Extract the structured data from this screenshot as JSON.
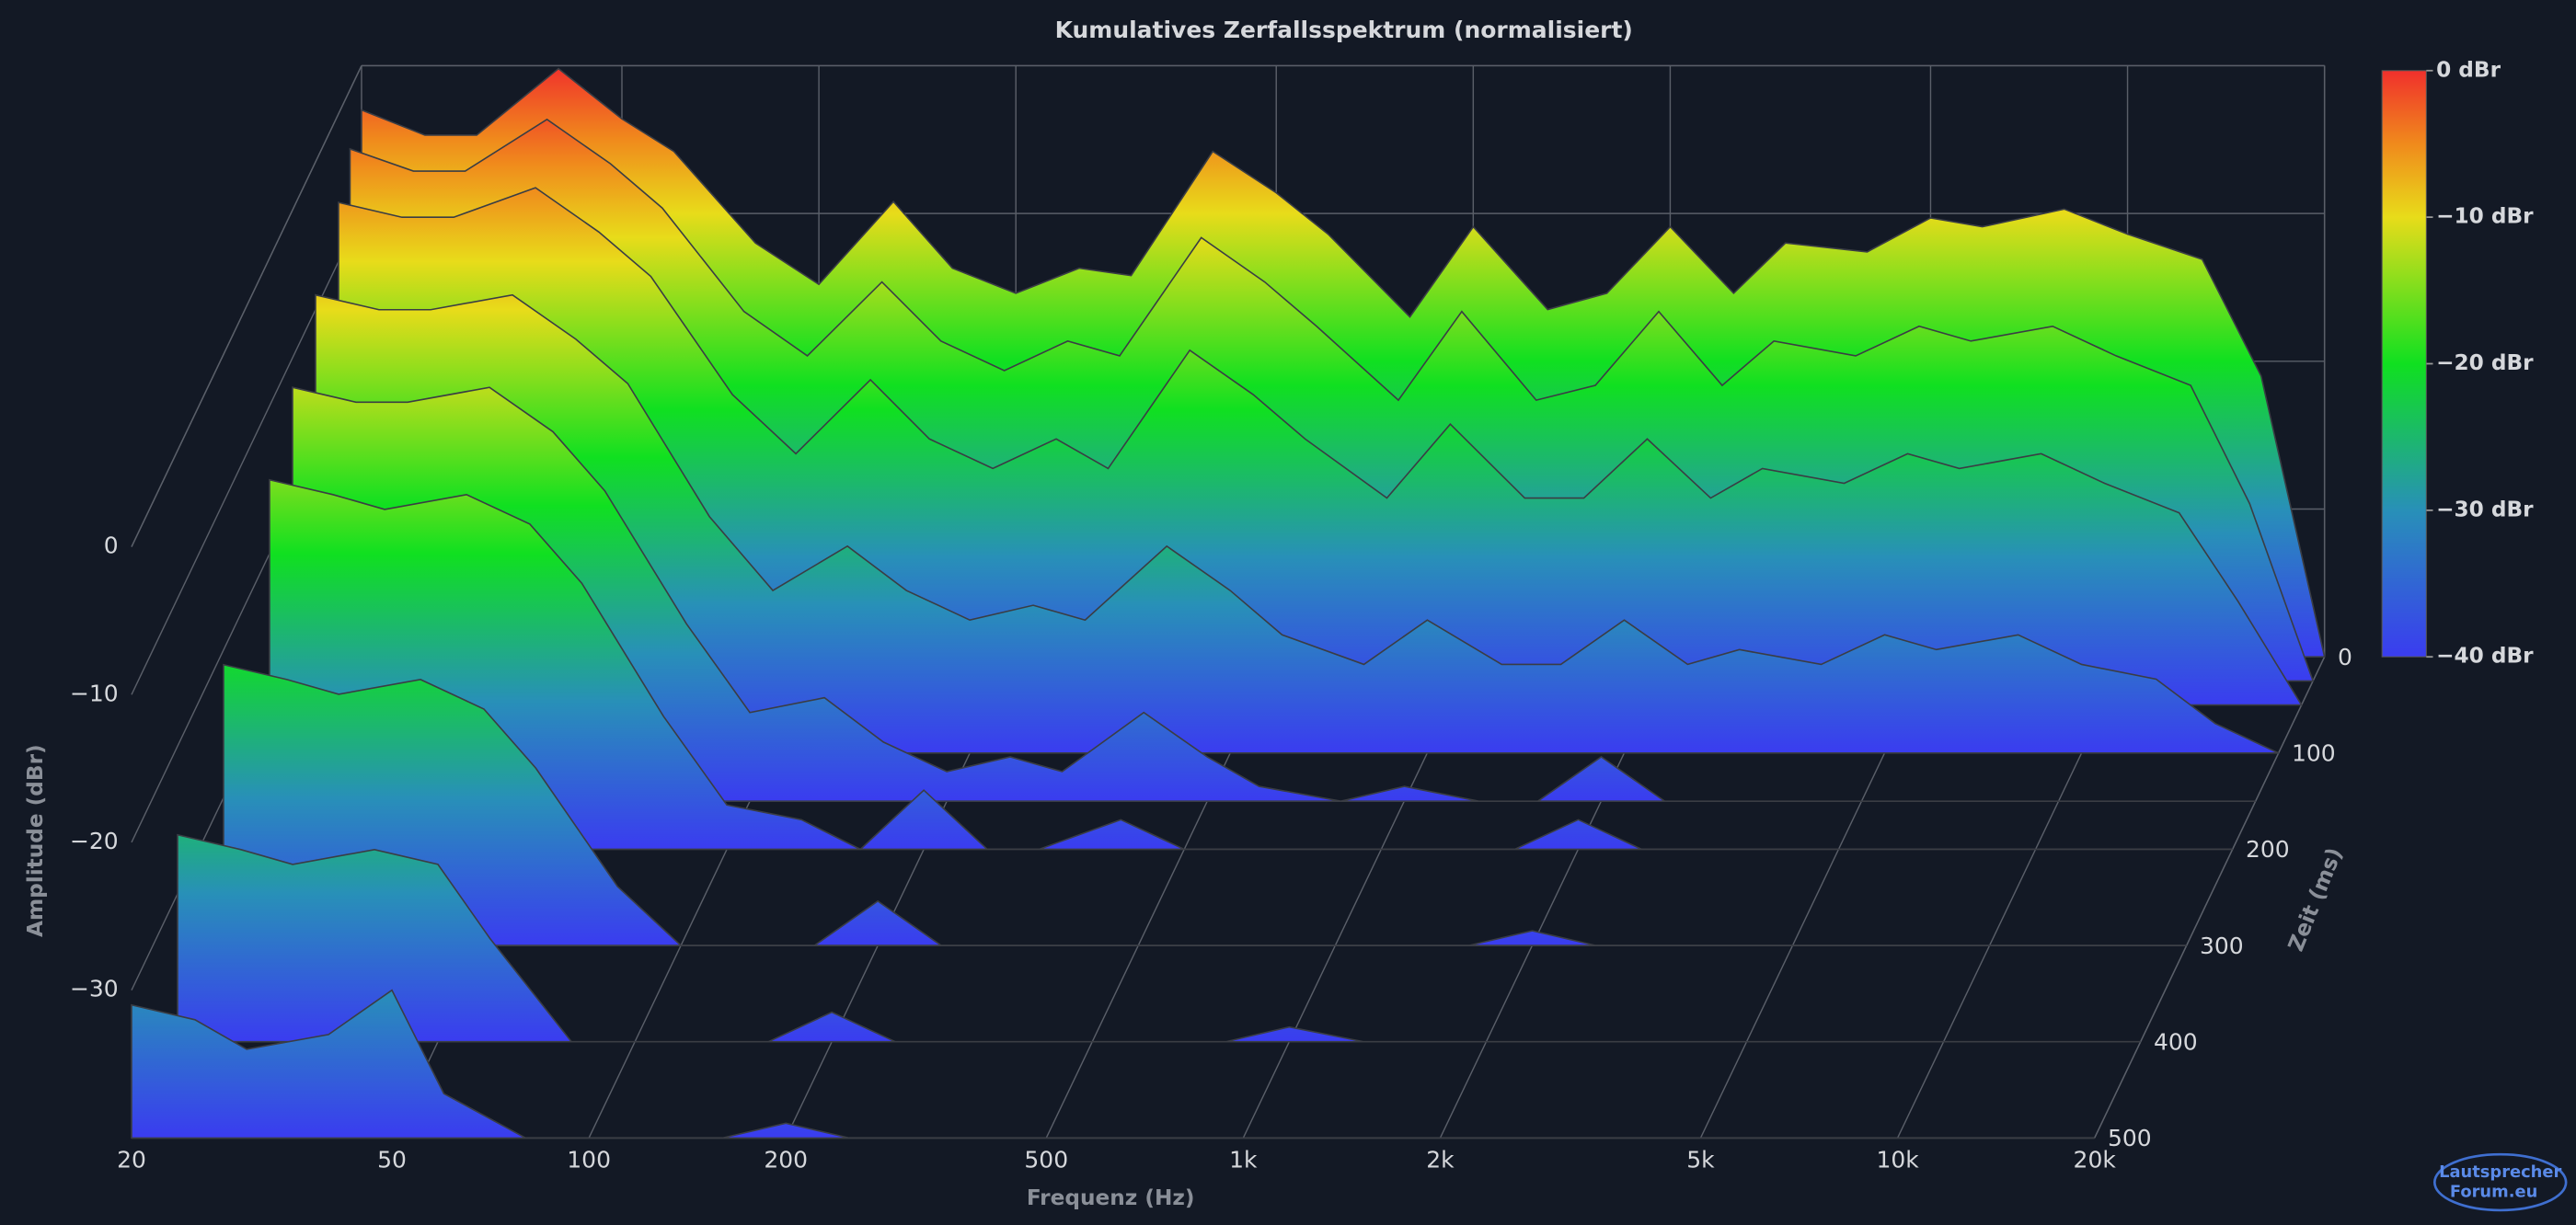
{
  "chart_data": {
    "type": "waterfall",
    "title": "Kumulatives Zerfallsspektrum (normalisiert)",
    "x_label": "Frequenz (Hz)",
    "y_label": "Amplitude (dBr)",
    "z_label": "Zeit (ms)",
    "x_scale": "log",
    "xlim": [
      20,
      20000
    ],
    "xticks": [
      20,
      50,
      100,
      200,
      500,
      {
        "value": 1000,
        "label": "1k"
      },
      {
        "value": 2000,
        "label": "2k"
      },
      {
        "value": 5000,
        "label": "5k"
      },
      {
        "value": 10000,
        "label": "10k"
      },
      {
        "value": 20000,
        "label": "20k"
      }
    ],
    "ylim": [
      -40,
      0
    ],
    "yticks": [
      {
        "value": 0,
        "label": "0"
      },
      {
        "value": -10,
        "label": "−10"
      },
      {
        "value": -20,
        "label": "−20"
      },
      {
        "value": -30,
        "label": "−30"
      }
    ],
    "zlim": [
      0,
      500
    ],
    "zticks": [
      0,
      100,
      200,
      300,
      400,
      500
    ],
    "x": [
      20,
      25,
      30,
      40,
      50,
      60,
      80,
      100,
      130,
      160,
      200,
      250,
      300,
      400,
      500,
      600,
      800,
      1000,
      1300,
      1600,
      2000,
      2500,
      3000,
      4000,
      5000,
      6000,
      8000,
      10000,
      13000,
      16000,
      20000
    ],
    "slices": [
      {
        "time": 0,
        "values": [
          -3,
          -4.7,
          -4.7,
          -0.2,
          -3.6,
          -5.8,
          -12,
          -14.8,
          -9.2,
          -13.7,
          -15.4,
          -13.7,
          -14.2,
          -5.8,
          -8.6,
          -11.4,
          -17,
          -10.9,
          -16.5,
          -15.4,
          -10.9,
          -15.4,
          -12,
          -12.6,
          -10.3,
          -10.9,
          -9.7,
          -11.4,
          -13.1,
          -21,
          -40
        ]
      },
      {
        "time": 25,
        "values": [
          -4,
          -5.5,
          -5.5,
          -2,
          -5,
          -8,
          -15,
          -18,
          -13,
          -17,
          -19,
          -17,
          -18,
          -10,
          -13,
          -16,
          -21,
          -15,
          -21,
          -20,
          -15,
          -20,
          -17,
          -18,
          -16,
          -17,
          -16,
          -18,
          -20,
          -28,
          -40
        ]
      },
      {
        "time": 50,
        "values": [
          -6,
          -7,
          -7,
          -5,
          -8,
          -11,
          -19,
          -23,
          -18,
          -22,
          -24,
          -22,
          -24,
          -16,
          -19,
          -22,
          -26,
          -21,
          -26,
          -26,
          -22,
          -26,
          -24,
          -25,
          -23,
          -24,
          -23,
          -25,
          -27,
          -33,
          -40
        ]
      },
      {
        "time": 100,
        "values": [
          -9,
          -10,
          -10,
          -9,
          -12,
          -15,
          -24,
          -29,
          -26,
          -29,
          -31,
          -30,
          -31,
          -26,
          -29,
          -32,
          -34,
          -31,
          -34,
          -34,
          -31,
          -34,
          -33,
          -34,
          -32,
          -33,
          -32,
          -34,
          -35,
          -38,
          -40
        ]
      },
      {
        "time": 150,
        "values": [
          -12,
          -13,
          -13,
          -12,
          -15,
          -19,
          -28,
          -34,
          -33,
          -36,
          -38,
          -37,
          -38,
          -34,
          -37,
          -39,
          -40,
          -39,
          -40,
          -40,
          -37,
          -40,
          -40,
          -40,
          -40,
          -40,
          -40,
          -40,
          -40,
          -40,
          -40
        ]
      },
      {
        "time": 200,
        "values": [
          -15,
          -16,
          -17,
          -16,
          -18,
          -22,
          -31,
          -37,
          -38,
          -40,
          -36,
          -40,
          -40,
          -38,
          -40,
          -40,
          -40,
          -40,
          -40,
          -40,
          -38,
          -40,
          -40,
          -40,
          -40,
          -40,
          -40,
          -40,
          -40,
          -40,
          -40
        ]
      },
      {
        "time": 300,
        "values": [
          -21,
          -22,
          -23,
          -22,
          -24,
          -28,
          -36,
          -40,
          -40,
          -40,
          -37,
          -40,
          -40,
          -40,
          -40,
          -40,
          -40,
          -40,
          -40,
          -40,
          -39,
          -40,
          -40,
          -40,
          -40,
          -40,
          -40,
          -40,
          -40,
          -40,
          -40
        ]
      },
      {
        "time": 400,
        "values": [
          -26,
          -27,
          -28,
          -27,
          -28,
          -33,
          -40,
          -40,
          -40,
          -40,
          -38,
          -40,
          -40,
          -40,
          -40,
          -40,
          -40,
          -39,
          -40,
          -40,
          -40,
          -40,
          -40,
          -40,
          -40,
          -40,
          -40,
          -40,
          -40,
          -40,
          -40
        ]
      },
      {
        "time": 500,
        "values": [
          -31,
          -32,
          -34,
          -33,
          -30,
          -37,
          -40,
          -40,
          -40,
          -40,
          -39,
          -40,
          -40,
          -40,
          -40,
          -40,
          -40,
          -40,
          -40,
          -40,
          -40,
          -40,
          -40,
          -40,
          -40,
          -40,
          -40,
          -40,
          -40,
          -40,
          -40
        ]
      }
    ],
    "colormap": [
      {
        "value": 0,
        "color": "#f0302c"
      },
      {
        "value": -5,
        "color": "#f08a1c"
      },
      {
        "value": -10,
        "color": "#e8dc1a"
      },
      {
        "value": -20,
        "color": "#10e020"
      },
      {
        "value": -30,
        "color": "#2890b8"
      },
      {
        "value": -40,
        "color": "#3a3cf0"
      }
    ],
    "colorbar_lim": [
      -40,
      0
    ],
    "colorbar_ticks": [
      {
        "value": 0,
        "label": "0 dBr"
      },
      {
        "value": -10,
        "label": "−10 dBr"
      },
      {
        "value": -20,
        "label": "−20 dBr"
      },
      {
        "value": -30,
        "label": "−30 dBr"
      },
      {
        "value": -40,
        "label": "−40 dBr"
      }
    ],
    "watermark": [
      "Lautsprecher",
      "Forum.eu"
    ]
  }
}
